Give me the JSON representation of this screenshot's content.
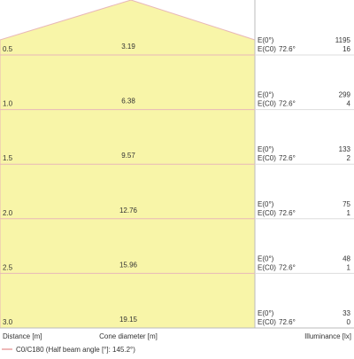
{
  "rows": [
    {
      "distance": "0.5",
      "diameter": "3.19",
      "e0_label": "E(0°)",
      "ec0_label": "E(C0)",
      "angle": "72.6°",
      "e0": "1195",
      "ec0": "16"
    },
    {
      "distance": "1.0",
      "diameter": "6.38",
      "e0_label": "E(0°)",
      "ec0_label": "E(C0)",
      "angle": "72.6°",
      "e0": "299",
      "ec0": "4"
    },
    {
      "distance": "1.5",
      "diameter": "9.57",
      "e0_label": "E(0°)",
      "ec0_label": "E(C0)",
      "angle": "72.6°",
      "e0": "133",
      "ec0": "2"
    },
    {
      "distance": "2.0",
      "diameter": "12.76",
      "e0_label": "E(0°)",
      "ec0_label": "E(C0)",
      "angle": "72.6°",
      "e0": "75",
      "ec0": "1"
    },
    {
      "distance": "2.5",
      "diameter": "15.96",
      "e0_label": "E(0°)",
      "ec0_label": "E(C0)",
      "angle": "72.6°",
      "e0": "48",
      "ec0": "1"
    },
    {
      "distance": "3.0",
      "diameter": "19.15",
      "e0_label": "E(0°)",
      "ec0_label": "E(C0)",
      "angle": "72.6°",
      "e0": "33",
      "ec0": "0"
    }
  ],
  "footer": {
    "distance": "Distance [m]",
    "diameter": "Cone diameter [m]",
    "illuminance": "Illuminance [lx]"
  },
  "legend": "C0/C180 (Half beam angle [°]: 145.2°)"
}
